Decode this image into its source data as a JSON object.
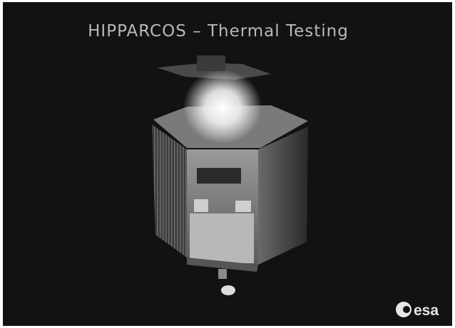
{
  "slide": {
    "title": "HIPPARCOS –  Thermal Testing",
    "logo": "esa"
  }
}
